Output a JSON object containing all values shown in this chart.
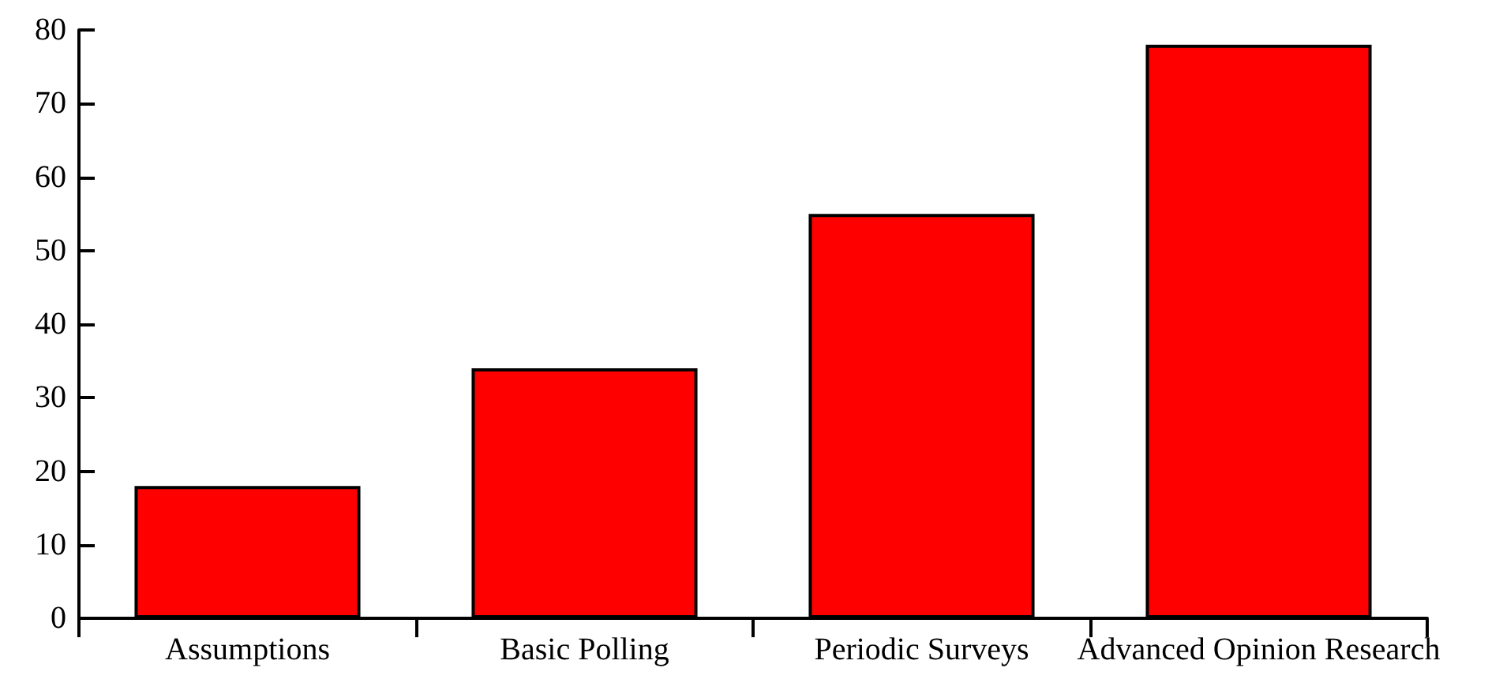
{
  "chart_data": {
    "type": "bar",
    "categories": [
      "Assumptions",
      "Basic Polling",
      "Periodic Surveys",
      "Advanced Opinion Research"
    ],
    "values": [
      18,
      34,
      55,
      78
    ],
    "color": "#ff0000",
    "ylim": [
      0,
      80
    ],
    "yticks": [
      0,
      10,
      20,
      30,
      40,
      50,
      60,
      70,
      80
    ],
    "grid": false
  }
}
